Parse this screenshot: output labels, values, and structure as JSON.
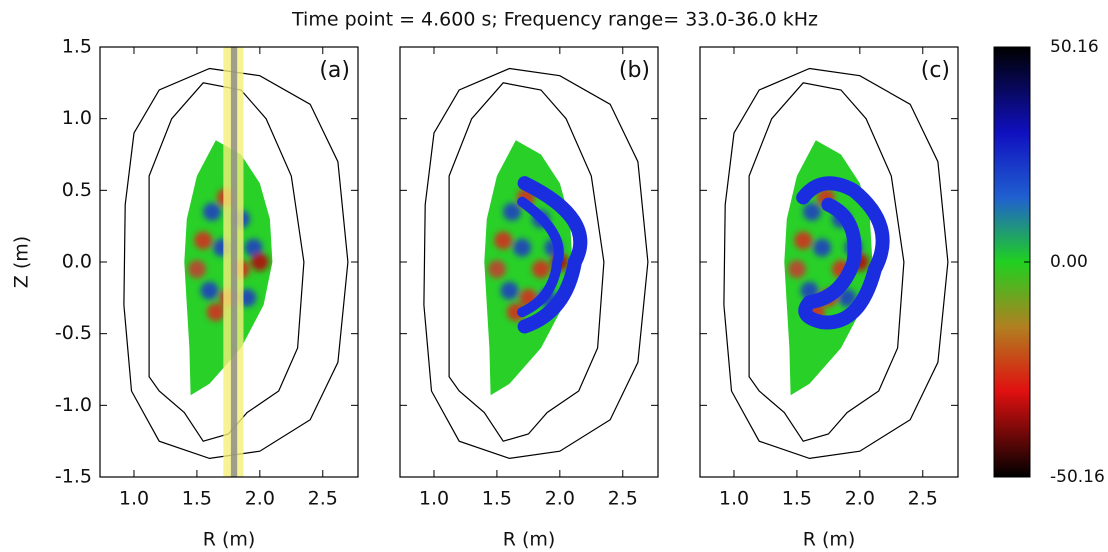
{
  "chart_data": {
    "type": "contour",
    "title": "Time point = 4.600 s; Frequency range= 33.0-36.0 kHz",
    "ylabel": "Z (m)",
    "xlim": [
      0.73,
      2.78
    ],
    "ylim": [
      -1.5,
      1.5
    ],
    "xticks": [
      {
        "value": 1.0,
        "label": "1.0"
      },
      1.5,
      {
        "value": 2.0,
        "label": "2.0"
      },
      2.5
    ],
    "yticks": [
      1.5,
      {
        "value": 1.0,
        "label": "1.0"
      },
      0.5,
      {
        "value": 0.0,
        "label": "0.0"
      },
      -0.5,
      {
        "value": -1.0,
        "label": "-1.0"
      },
      -1.5
    ],
    "panels": [
      {
        "label": "(a)",
        "xlabel": "R (m)"
      },
      {
        "label": "(b)",
        "xlabel": "R (m)"
      },
      {
        "label": "(c)",
        "xlabel": "R (m)"
      }
    ],
    "colorbar": {
      "clim": [
        -50.16,
        50.16
      ],
      "ticks": [
        50.16,
        {
          "value": 0.0,
          "label": "0.00"
        },
        -50.16
      ]
    }
  }
}
